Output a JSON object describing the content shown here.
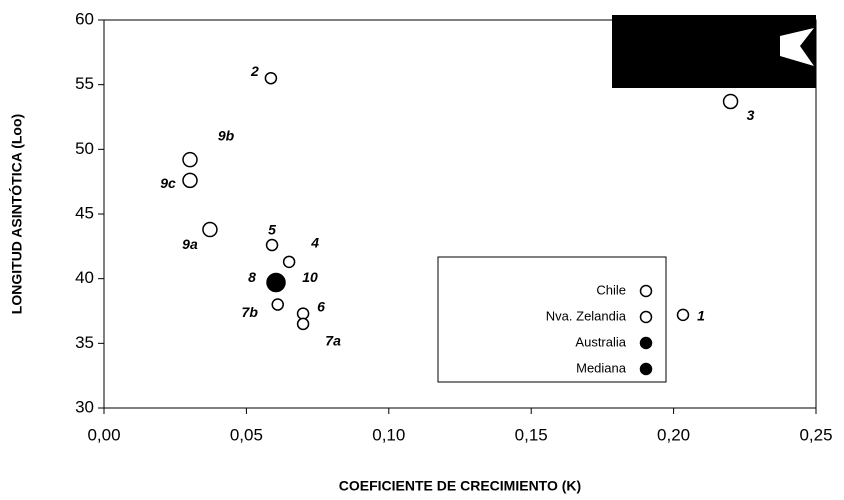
{
  "chart_data": {
    "type": "scatter",
    "x_label": "COEFICIENTE DE CRECIMIENTO (K)",
    "y_label": "LONGITUD ASINTÓTICA (Loo)",
    "xlim": [
      0,
      0.25
    ],
    "xticks": [
      {
        "value": 0,
        "label": "0,00"
      },
      {
        "value": 0.05,
        "label": "0,05"
      },
      {
        "value": 0.1,
        "label": "0,10"
      },
      {
        "value": 0.15,
        "label": "0,15"
      },
      {
        "value": 0.2,
        "label": "0,20"
      },
      {
        "value": 0.25,
        "label": "0,25"
      }
    ],
    "ylim": [
      30,
      60
    ],
    "yticks": [
      30,
      35,
      40,
      45,
      50,
      55,
      60
    ],
    "series": [
      {
        "name": "Chile",
        "color": "#000000",
        "filled": false,
        "size": 7,
        "x": [
          0.22,
          0.0302,
          0.0302,
          0.0372
        ],
        "values": [
          53.7,
          49.2,
          47.6,
          43.8
        ],
        "point_labels": [
          "3",
          "9b",
          "9c",
          "9a"
        ]
      },
      {
        "name": "Nva. Zelandia",
        "color": "#000000",
        "filled": false,
        "size": 5.5,
        "x": [
          0.2033,
          0.0586,
          0.065,
          0.059,
          0.0699,
          0.0699,
          0.061
        ],
        "values": [
          37.2,
          55.5,
          41.3,
          42.6,
          37.3,
          36.5,
          38.0
        ],
        "point_labels": [
          "1",
          "2",
          "4",
          "5",
          "6",
          "7a",
          "7b"
        ]
      },
      {
        "name": "Australia",
        "color": "#000000",
        "filled": true,
        "size": 9,
        "x": [
          0.0604
        ],
        "values": [
          39.7
        ],
        "point_labels": [
          "8"
        ]
      },
      {
        "name": "Mediana",
        "color": "#000000",
        "filled": true,
        "size": 6,
        "x": [
          0.0604
        ],
        "values": [
          39.7
        ],
        "point_labels": [
          "10"
        ]
      }
    ]
  }
}
